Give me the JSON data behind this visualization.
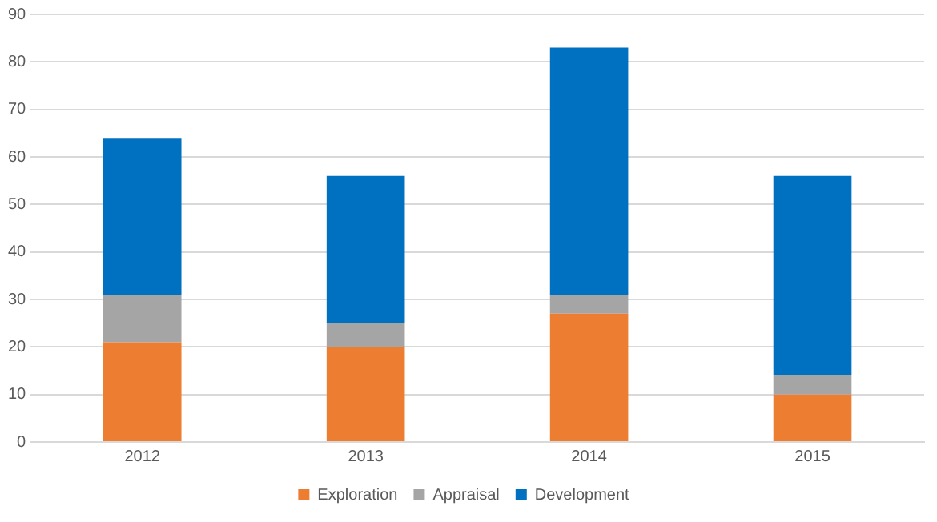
{
  "chart_data": {
    "type": "bar",
    "stacked": true,
    "categories": [
      "2012",
      "2013",
      "2014",
      "2015"
    ],
    "series": [
      {
        "name": "Exploration",
        "color": "#ed7d31",
        "values": [
          21,
          20,
          27,
          10
        ]
      },
      {
        "name": "Appraisal",
        "color": "#a5a5a5",
        "values": [
          10,
          5,
          4,
          4
        ]
      },
      {
        "name": "Development",
        "color": "#0070c0",
        "values": [
          33,
          31,
          52,
          42
        ]
      }
    ],
    "ylim": [
      0,
      90
    ],
    "yticks": [
      0,
      10,
      20,
      30,
      40,
      50,
      60,
      70,
      80,
      90
    ],
    "grid": "y",
    "legend": "bottom"
  }
}
